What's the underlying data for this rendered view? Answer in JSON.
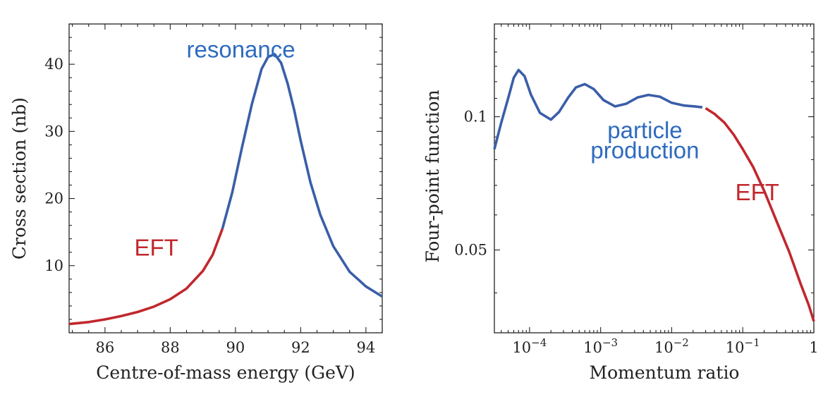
{
  "chart_data": [
    {
      "type": "line",
      "xlabel": "Centre-of-mass energy (GeV)",
      "ylabel": "Cross section (nb)",
      "xlim": [
        84.9,
        94.5
      ],
      "ylim": [
        0,
        46
      ],
      "x_ticks": [
        86,
        88,
        90,
        92,
        94
      ],
      "x_tick_labels": [
        "86",
        "88",
        "90",
        "92",
        "94"
      ],
      "y_ticks": [
        10,
        20,
        30,
        40
      ],
      "y_tick_labels": [
        "10",
        "20",
        "30",
        "40"
      ],
      "grid": false,
      "series": [
        {
          "color": "#c1272d",
          "points": [
            [
              84.9,
              1.3
            ],
            [
              85.5,
              1.6
            ],
            [
              86.0,
              2.0
            ],
            [
              86.5,
              2.5
            ],
            [
              87.0,
              3.1
            ],
            [
              87.5,
              3.9
            ],
            [
              88.0,
              5.0
            ],
            [
              88.5,
              6.6
            ],
            [
              89.0,
              9.2
            ],
            [
              89.3,
              11.6
            ],
            [
              89.6,
              15.5
            ]
          ]
        },
        {
          "color": "#3a5ea8",
          "points": [
            [
              89.6,
              15.5
            ],
            [
              89.9,
              20.9
            ],
            [
              90.2,
              27.6
            ],
            [
              90.5,
              34.0
            ],
            [
              90.8,
              39.3
            ],
            [
              91.0,
              41.1
            ],
            [
              91.2,
              41.5
            ],
            [
              91.4,
              40.2
            ],
            [
              91.6,
              37.1
            ],
            [
              91.8,
              33.2
            ],
            [
              92.0,
              28.6
            ],
            [
              92.3,
              22.4
            ],
            [
              92.6,
              17.6
            ],
            [
              93.0,
              12.9
            ],
            [
              93.5,
              9.1
            ],
            [
              94.0,
              6.9
            ],
            [
              94.5,
              5.4
            ]
          ]
        }
      ],
      "annotations": [
        {
          "text": "resonance",
          "x": 88.5,
          "y": 41,
          "color": "#2e6bbf"
        },
        {
          "text": "EFT",
          "x": 86.9,
          "y": 11.5,
          "color": "#c1272d"
        }
      ]
    },
    {
      "type": "line",
      "xlabel": "Momentum ratio",
      "ylabel": "Four-point function",
      "x_scale": "log",
      "y_scale": "log",
      "xlim": [
        3.2e-05,
        1
      ],
      "ylim": [
        0.0325,
        0.162
      ],
      "x_ticks": [
        0.0001,
        0.001,
        0.01,
        0.1,
        1
      ],
      "x_tick_labels": [
        {
          "base": "10",
          "exp": "−4"
        },
        {
          "base": "10",
          "exp": "−3"
        },
        {
          "base": "10",
          "exp": "−2"
        },
        {
          "base": "10",
          "exp": "−1"
        },
        {
          "base": "1",
          "exp": ""
        }
      ],
      "y_ticks": [
        0.05,
        0.1
      ],
      "y_tick_labels": [
        "0.05",
        "0.1"
      ],
      "grid": false,
      "series": [
        {
          "color": "#3a5ea8",
          "points": [
            [
              3.2e-05,
              0.0845
            ],
            [
              4e-05,
              0.097
            ],
            [
              5e-05,
              0.11
            ],
            [
              6e-05,
              0.1225
            ],
            [
              7e-05,
              0.1275
            ],
            [
              8.5e-05,
              0.1235
            ],
            [
              0.000105,
              0.112
            ],
            [
              0.00014,
              0.102
            ],
            [
              0.0002,
              0.0985
            ],
            [
              0.00026,
              0.1025
            ],
            [
              0.00035,
              0.1105
            ],
            [
              0.00045,
              0.1165
            ],
            [
              0.0006,
              0.1185
            ],
            [
              0.0008,
              0.1155
            ],
            [
              0.0011,
              0.109
            ],
            [
              0.0016,
              0.1055
            ],
            [
              0.0023,
              0.107
            ],
            [
              0.0033,
              0.1105
            ],
            [
              0.0047,
              0.112
            ],
            [
              0.0068,
              0.111
            ],
            [
              0.01,
              0.1075
            ],
            [
              0.015,
              0.106
            ],
            [
              0.021,
              0.1055
            ],
            [
              0.027,
              0.105
            ]
          ]
        },
        {
          "color": "#c1272d",
          "points": [
            [
              0.03,
              0.1045
            ],
            [
              0.04,
              0.1015
            ],
            [
              0.055,
              0.097
            ],
            [
              0.075,
              0.091
            ],
            [
              0.1,
              0.0845
            ],
            [
              0.14,
              0.077
            ],
            [
              0.2,
              0.068
            ],
            [
              0.3,
              0.058
            ],
            [
              0.45,
              0.0495
            ],
            [
              0.65,
              0.042
            ],
            [
              0.85,
              0.0375
            ],
            [
              1.0,
              0.0345
            ]
          ]
        }
      ],
      "annotations": [
        {
          "text": "particle",
          "x": 0.0042,
          "y": 0.0895,
          "color": "#2e6bbf"
        },
        {
          "text": "production",
          "x": 0.0042,
          "y": 0.0805,
          "color": "#2e6bbf"
        },
        {
          "text": "EFT",
          "x": 0.16,
          "y": 0.0648,
          "color": "#c1272d"
        }
      ]
    }
  ]
}
